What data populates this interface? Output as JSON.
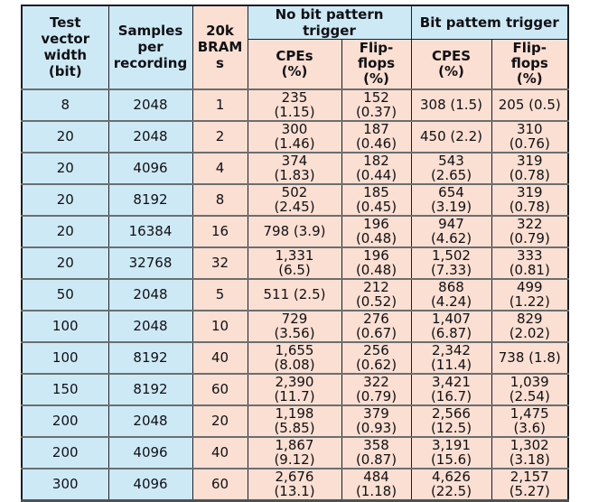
{
  "colors": {
    "cell_blue": "#cde9f6",
    "cell_peach": "#fadfd2",
    "border_dark": "#1d1d26",
    "row_separator": "#6a6e70",
    "text": "#101014"
  },
  "table": {
    "header": {
      "test_vector_width": "Test\nvector\nwidth\n(bit)",
      "samples_per_recording": "Samples\nper\nrecording",
      "brams": "20k\nBRAM\ns",
      "group_no_trigger": "No bit pattern\ntrigger",
      "group_bit_trigger": "Bit pattem trigger",
      "no_trigger_cpes": "CPEs\n(%)",
      "no_trigger_flipflops": "Flip-\nflops\n(%)",
      "bit_trigger_cpes": "CPES\n(%)",
      "bit_trigger_flipflops": "Flip-\nflops\n(%)"
    },
    "column_ids": [
      "test-vector-width",
      "samples-per-recording",
      "brams-20k",
      "no-trigger-cpes",
      "no-trigger-flipflops",
      "bit-trigger-cpes",
      "bit-trigger-flipflops"
    ],
    "rows": [
      [
        "8",
        "2048",
        "1",
        "235\n(1.15)",
        "152\n(0.37)",
        "308 (1.5)",
        "205 (0.5)"
      ],
      [
        "20",
        "2048",
        "2",
        "300\n(1.46)",
        "187\n(0.46)",
        "450 (2.2)",
        "310\n(0.76)"
      ],
      [
        "20",
        "4096",
        "4",
        "374\n(1.83)",
        "182\n(0.44)",
        "543\n(2.65)",
        "319\n(0.78)"
      ],
      [
        "20",
        "8192",
        "8",
        "502\n(2.45)",
        "185\n(0.45)",
        "654\n(3.19)",
        "319\n(0.78)"
      ],
      [
        "20",
        "16384",
        "16",
        "798 (3.9)",
        "196\n(0.48)",
        "947\n(4.62)",
        "322\n(0.79)"
      ],
      [
        "20",
        "32768",
        "32",
        "1,331\n(6.5)",
        "196\n(0.48)",
        "1,502\n(7.33)",
        "333\n(0.81)"
      ],
      [
        "50",
        "2048",
        "5",
        "511 (2.5)",
        "212\n(0.52)",
        "868\n(4.24)",
        "499\n(1.22)"
      ],
      [
        "100",
        "2048",
        "10",
        "729\n(3.56)",
        "276\n(0.67)",
        "1,407\n(6.87)",
        "829\n(2.02)"
      ],
      [
        "100",
        "8192",
        "40",
        "1,655\n(8.08)",
        "256\n(0.62)",
        "2,342\n(11.4)",
        "738 (1.8)"
      ],
      [
        "150",
        "8192",
        "60",
        "2,390\n(11.7)",
        "322\n(0.79)",
        "3,421\n(16.7)",
        "1,039\n(2.54)"
      ],
      [
        "200",
        "2048",
        "20",
        "1,198\n(5.85)",
        "379\n(0.93)",
        "2,566\n(12.5)",
        "1,475\n(3.6)"
      ],
      [
        "200",
        "4096",
        "40",
        "1,867\n(9.12)",
        "358\n(0.87)",
        "3,191\n(15.6)",
        "1,302\n(3.18)"
      ],
      [
        "300",
        "4096",
        "60",
        "2,676\n(13.1)",
        "484\n(1.18)",
        "4,626\n(22.5)",
        "2,157\n(5.27)"
      ]
    ]
  }
}
